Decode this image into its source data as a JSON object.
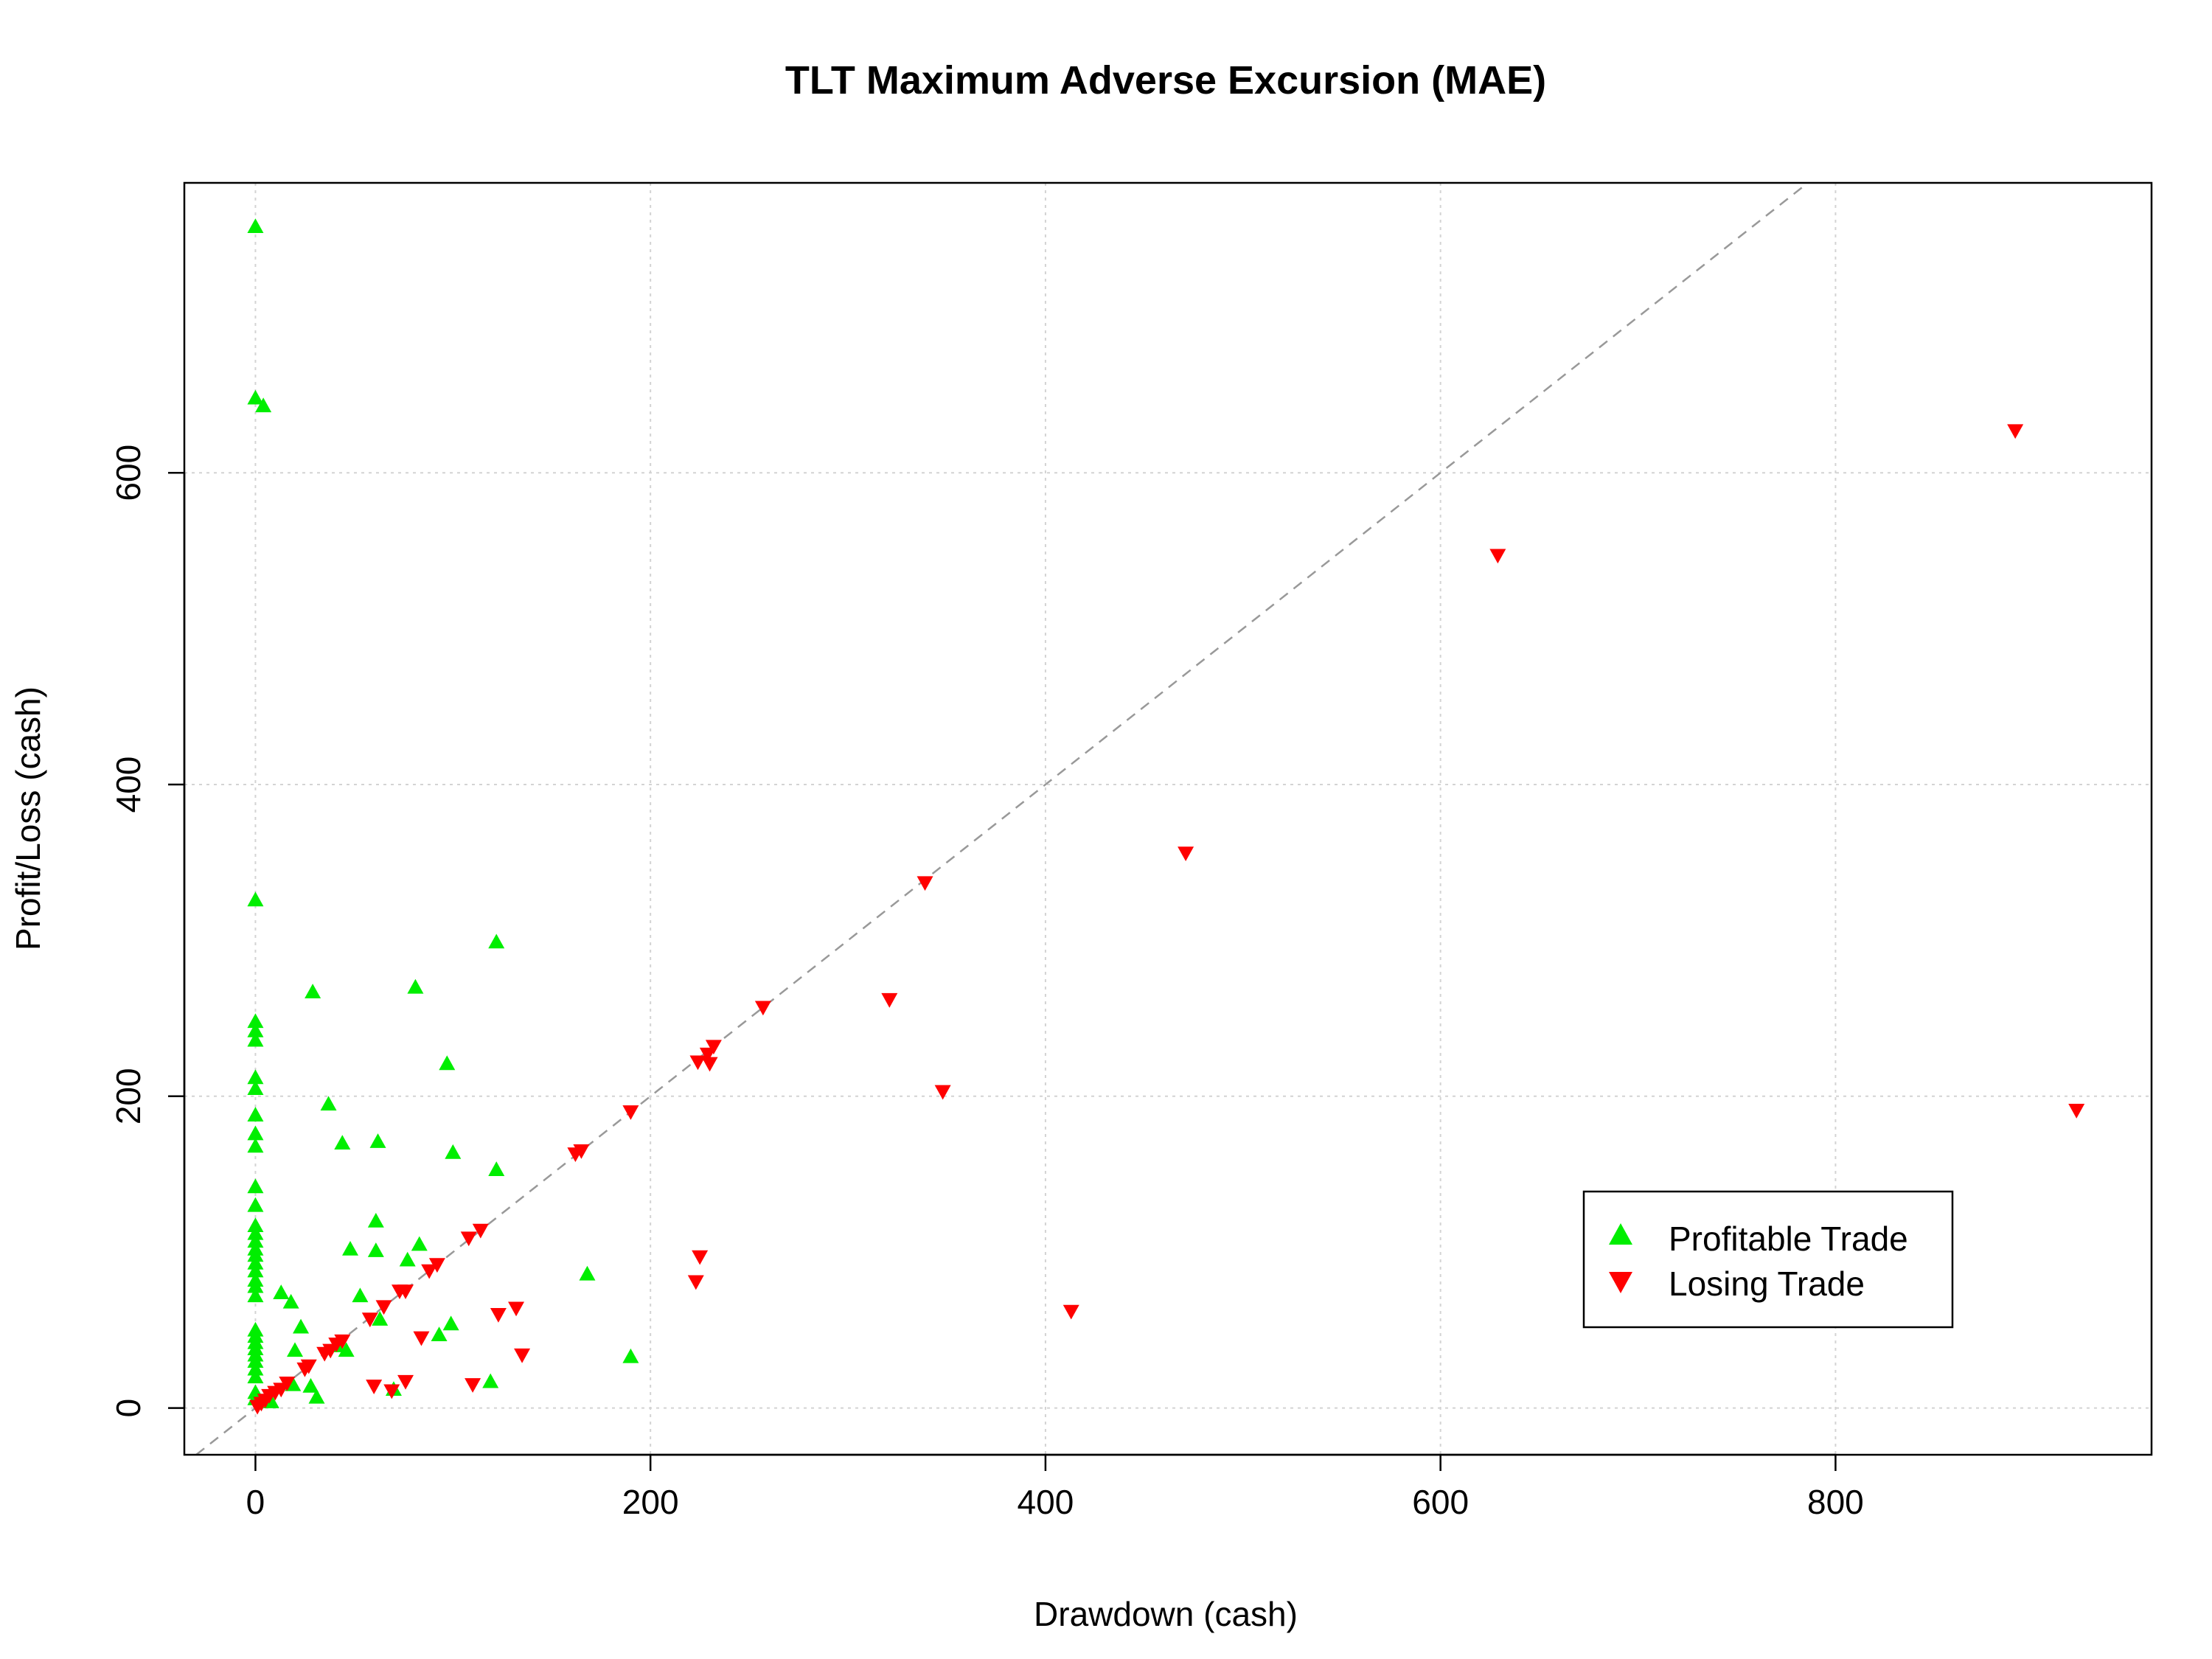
{
  "chart_data": {
    "type": "scatter",
    "title": "TLT Maximum Adverse Excursion (MAE)",
    "xlabel": "Drawdown (cash)",
    "ylabel": "Profit/Loss (cash)",
    "xlim": [
      -36,
      960
    ],
    "ylim": [
      -30,
      786
    ],
    "xticks": [
      0,
      200,
      400,
      600,
      800
    ],
    "yticks": [
      0,
      200,
      400,
      600
    ],
    "xtick_labels": [
      "0",
      "200",
      "400",
      "600",
      "800"
    ],
    "ytick_labels": [
      "0",
      "200",
      "400",
      "600"
    ],
    "grid": true,
    "reference_line": "y = x (dashed)",
    "legend": {
      "position": "bottom-right",
      "entries": [
        {
          "label": "Profitable Trade",
          "marker": "triangle-up",
          "color": "#00ee00"
        },
        {
          "label": "Losing Trade",
          "marker": "triangle-down",
          "color": "#ff0000"
        }
      ]
    },
    "series": [
      {
        "name": "Profitable Trade",
        "marker": "triangle-up",
        "color": "#00ee00",
        "points": [
          [
            0,
            758
          ],
          [
            0,
            648
          ],
          [
            4,
            643
          ],
          [
            0,
            326
          ],
          [
            0,
            248
          ],
          [
            0,
            242
          ],
          [
            0,
            236
          ],
          [
            0,
            212
          ],
          [
            0,
            205
          ],
          [
            0,
            188
          ],
          [
            0,
            176
          ],
          [
            0,
            168
          ],
          [
            0,
            142
          ],
          [
            0,
            130
          ],
          [
            0,
            117
          ],
          [
            0,
            112
          ],
          [
            0,
            107
          ],
          [
            0,
            102
          ],
          [
            0,
            98
          ],
          [
            0,
            93
          ],
          [
            0,
            88
          ],
          [
            0,
            82
          ],
          [
            0,
            78
          ],
          [
            0,
            72
          ],
          [
            0,
            50
          ],
          [
            0,
            46
          ],
          [
            0,
            42
          ],
          [
            0,
            38
          ],
          [
            0,
            34
          ],
          [
            0,
            30
          ],
          [
            0,
            25
          ],
          [
            0,
            20
          ],
          [
            0,
            10
          ],
          [
            0,
            6
          ],
          [
            29,
            267
          ],
          [
            37,
            195
          ],
          [
            44,
            170
          ],
          [
            48,
            102
          ],
          [
            53,
            72
          ],
          [
            62,
            171
          ],
          [
            61,
            120
          ],
          [
            61,
            101
          ],
          [
            63,
            57
          ],
          [
            81,
            270
          ],
          [
            83,
            105
          ],
          [
            77,
            95
          ],
          [
            97,
            221
          ],
          [
            100,
            164
          ],
          [
            122,
            299
          ],
          [
            122,
            153
          ],
          [
            99,
            54
          ],
          [
            93,
            47
          ],
          [
            119,
            17
          ],
          [
            168,
            86
          ],
          [
            190,
            33
          ],
          [
            13,
            74
          ],
          [
            18,
            68
          ],
          [
            23,
            52
          ],
          [
            20,
            37
          ],
          [
            28,
            14
          ],
          [
            31,
            7
          ],
          [
            8,
            4
          ],
          [
            19,
            15
          ],
          [
            46,
            37
          ],
          [
            70,
            12
          ],
          [
            41,
            40
          ]
        ]
      },
      {
        "name": "Losing Trade",
        "marker": "triangle-down",
        "color": "#ff0000",
        "points": [
          [
            891,
            627
          ],
          [
            629,
            547
          ],
          [
            922,
            191
          ],
          [
            471,
            356
          ],
          [
            339,
            337
          ],
          [
            321,
            262
          ],
          [
            348,
            203
          ],
          [
            413,
            62
          ],
          [
            257,
            257
          ],
          [
            232,
            232
          ],
          [
            229,
            227
          ],
          [
            224,
            222
          ],
          [
            230,
            221
          ],
          [
            225,
            97
          ],
          [
            223,
            81
          ],
          [
            190,
            190
          ],
          [
            165,
            165
          ],
          [
            162,
            163
          ],
          [
            114,
            114
          ],
          [
            108,
            109
          ],
          [
            132,
            64
          ],
          [
            123,
            60
          ],
          [
            135,
            34
          ],
          [
            110,
            15
          ],
          [
            92,
            92
          ],
          [
            88,
            88
          ],
          [
            84,
            45
          ],
          [
            76,
            75
          ],
          [
            73,
            75
          ],
          [
            65,
            65
          ],
          [
            58,
            57
          ],
          [
            76,
            17
          ],
          [
            60,
            14
          ],
          [
            69,
            11
          ],
          [
            44,
            43
          ],
          [
            41,
            41
          ],
          [
            38,
            37
          ],
          [
            35,
            35
          ],
          [
            27,
            27
          ],
          [
            25,
            25
          ],
          [
            16,
            16
          ],
          [
            13,
            12
          ],
          [
            10,
            10
          ],
          [
            7,
            8
          ],
          [
            5,
            5
          ],
          [
            3,
            3
          ],
          [
            1,
            1
          ]
        ]
      }
    ]
  }
}
